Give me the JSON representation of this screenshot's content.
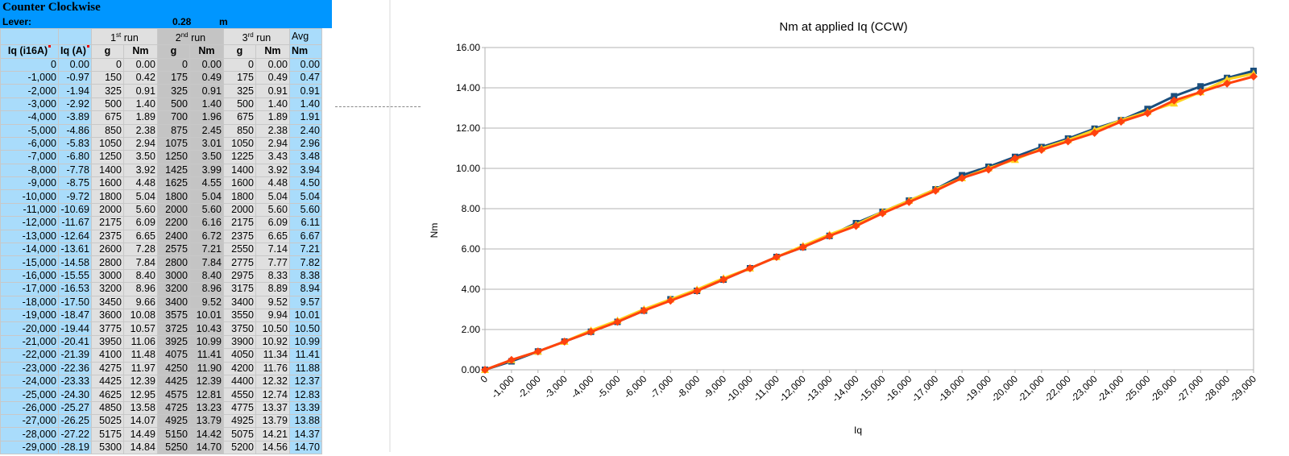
{
  "sheet": {
    "title": "Counter Clockwise",
    "lever_label": "Lever:",
    "lever_value": "0.28",
    "lever_unit": "m",
    "run1": [
      "1",
      "st",
      " run"
    ],
    "run2": [
      "2",
      "nd",
      " run"
    ],
    "run3": [
      "3",
      "rd",
      " run"
    ],
    "avg_header": "Avg",
    "col_headers": [
      "Iq (i16A)",
      "Iq (A)",
      "g",
      "Nm",
      "g",
      "Nm",
      "g",
      "Nm",
      "Nm"
    ],
    "rows": [
      [
        "0",
        "0.00",
        "0",
        "0.00",
        "0",
        "0.00",
        "0",
        "0.00",
        "0.00"
      ],
      [
        "-1,000",
        "-0.97",
        "150",
        "0.42",
        "175",
        "0.49",
        "175",
        "0.49",
        "0.47"
      ],
      [
        "-2,000",
        "-1.94",
        "325",
        "0.91",
        "325",
        "0.91",
        "325",
        "0.91",
        "0.91"
      ],
      [
        "-3,000",
        "-2.92",
        "500",
        "1.40",
        "500",
        "1.40",
        "500",
        "1.40",
        "1.40"
      ],
      [
        "-4,000",
        "-3.89",
        "675",
        "1.89",
        "700",
        "1.96",
        "675",
        "1.89",
        "1.91"
      ],
      [
        "-5,000",
        "-4.86",
        "850",
        "2.38",
        "875",
        "2.45",
        "850",
        "2.38",
        "2.40"
      ],
      [
        "-6,000",
        "-5.83",
        "1050",
        "2.94",
        "1075",
        "3.01",
        "1050",
        "2.94",
        "2.96"
      ],
      [
        "-7,000",
        "-6.80",
        "1250",
        "3.50",
        "1250",
        "3.50",
        "1225",
        "3.43",
        "3.48"
      ],
      [
        "-8,000",
        "-7.78",
        "1400",
        "3.92",
        "1425",
        "3.99",
        "1400",
        "3.92",
        "3.94"
      ],
      [
        "-9,000",
        "-8.75",
        "1600",
        "4.48",
        "1625",
        "4.55",
        "1600",
        "4.48",
        "4.50"
      ],
      [
        "-10,000",
        "-9.72",
        "1800",
        "5.04",
        "1800",
        "5.04",
        "1800",
        "5.04",
        "5.04"
      ],
      [
        "-11,000",
        "-10.69",
        "2000",
        "5.60",
        "2000",
        "5.60",
        "2000",
        "5.60",
        "5.60"
      ],
      [
        "-12,000",
        "-11.67",
        "2175",
        "6.09",
        "2200",
        "6.16",
        "2175",
        "6.09",
        "6.11"
      ],
      [
        "-13,000",
        "-12.64",
        "2375",
        "6.65",
        "2400",
        "6.72",
        "2375",
        "6.65",
        "6.67"
      ],
      [
        "-14,000",
        "-13.61",
        "2600",
        "7.28",
        "2575",
        "7.21",
        "2550",
        "7.14",
        "7.21"
      ],
      [
        "-15,000",
        "-14.58",
        "2800",
        "7.84",
        "2800",
        "7.84",
        "2775",
        "7.77",
        "7.82"
      ],
      [
        "-16,000",
        "-15.55",
        "3000",
        "8.40",
        "3000",
        "8.40",
        "2975",
        "8.33",
        "8.38"
      ],
      [
        "-17,000",
        "-16.53",
        "3200",
        "8.96",
        "3200",
        "8.96",
        "3175",
        "8.89",
        "8.94"
      ],
      [
        "-18,000",
        "-17.50",
        "3450",
        "9.66",
        "3400",
        "9.52",
        "3400",
        "9.52",
        "9.57"
      ],
      [
        "-19,000",
        "-18.47",
        "3600",
        "10.08",
        "3575",
        "10.01",
        "3550",
        "9.94",
        "10.01"
      ],
      [
        "-20,000",
        "-19.44",
        "3775",
        "10.57",
        "3725",
        "10.43",
        "3750",
        "10.50",
        "10.50"
      ],
      [
        "-21,000",
        "-20.41",
        "3950",
        "11.06",
        "3925",
        "10.99",
        "3900",
        "10.92",
        "10.99"
      ],
      [
        "-22,000",
        "-21.39",
        "4100",
        "11.48",
        "4075",
        "11.41",
        "4050",
        "11.34",
        "11.41"
      ],
      [
        "-23,000",
        "-22.36",
        "4275",
        "11.97",
        "4250",
        "11.90",
        "4200",
        "11.76",
        "11.88"
      ],
      [
        "-24,000",
        "-23.33",
        "4425",
        "12.39",
        "4425",
        "12.39",
        "4400",
        "12.32",
        "12.37"
      ],
      [
        "-25,000",
        "-24.30",
        "4625",
        "12.95",
        "4575",
        "12.81",
        "4550",
        "12.74",
        "12.83"
      ],
      [
        "-26,000",
        "-25.27",
        "4850",
        "13.58",
        "4725",
        "13.23",
        "4775",
        "13.37",
        "13.39"
      ],
      [
        "-27,000",
        "-26.25",
        "5025",
        "14.07",
        "4925",
        "13.79",
        "4925",
        "13.79",
        "13.88"
      ],
      [
        "-28,000",
        "-27.22",
        "5175",
        "14.49",
        "5150",
        "14.42",
        "5075",
        "14.21",
        "14.37"
      ],
      [
        "-29,000",
        "-28.19",
        "5300",
        "14.84",
        "5250",
        "14.70",
        "5200",
        "14.56",
        "14.70"
      ]
    ]
  },
  "chart_data": {
    "type": "line",
    "title": "Nm at applied Iq (CCW)",
    "xlabel": "Iq",
    "ylabel": "Nm",
    "categories": [
      "0",
      "-1,000",
      "-2,000",
      "-3,000",
      "-4,000",
      "-5,000",
      "-6,000",
      "-7,000",
      "-8,000",
      "-9,000",
      "-10,000",
      "-11,000",
      "-12,000",
      "-13,000",
      "-14,000",
      "-15,000",
      "-16,000",
      "-17,000",
      "-18,000",
      "-19,000",
      "-20,000",
      "-21,000",
      "-22,000",
      "-23,000",
      "-24,000",
      "-25,000",
      "-26,000",
      "-27,000",
      "-28,000",
      "-29,000"
    ],
    "ylim": [
      0,
      16
    ],
    "yticks": [
      "0.00",
      "2.00",
      "4.00",
      "6.00",
      "8.00",
      "10.00",
      "12.00",
      "14.00",
      "16.00"
    ],
    "grid": true,
    "legend": "none",
    "series": [
      {
        "color": "#1a4e7d",
        "marker": "square",
        "values": [
          0,
          0.42,
          0.91,
          1.4,
          1.89,
          2.38,
          2.94,
          3.5,
          3.92,
          4.48,
          5.04,
          5.6,
          6.09,
          6.65,
          7.28,
          7.84,
          8.4,
          8.96,
          9.66,
          10.08,
          10.57,
          11.06,
          11.48,
          11.97,
          12.39,
          12.95,
          13.58,
          14.07,
          14.49,
          14.84
        ]
      },
      {
        "color": "#ffd320",
        "marker": "triangle",
        "values": [
          0,
          0.49,
          0.91,
          1.4,
          1.96,
          2.45,
          3.01,
          3.5,
          3.99,
          4.55,
          5.04,
          5.6,
          6.16,
          6.72,
          7.21,
          7.84,
          8.4,
          8.96,
          9.52,
          10.01,
          10.43,
          10.99,
          11.41,
          11.9,
          12.39,
          12.81,
          13.23,
          13.79,
          14.42,
          14.7
        ]
      },
      {
        "color": "#ff420e",
        "marker": "diamond",
        "values": [
          0,
          0.49,
          0.91,
          1.4,
          1.89,
          2.38,
          2.94,
          3.43,
          3.92,
          4.48,
          5.04,
          5.6,
          6.09,
          6.65,
          7.14,
          7.77,
          8.33,
          8.89,
          9.52,
          9.94,
          10.5,
          10.92,
          11.34,
          11.76,
          12.32,
          12.74,
          13.37,
          13.79,
          14.21,
          14.56
        ]
      }
    ]
  }
}
